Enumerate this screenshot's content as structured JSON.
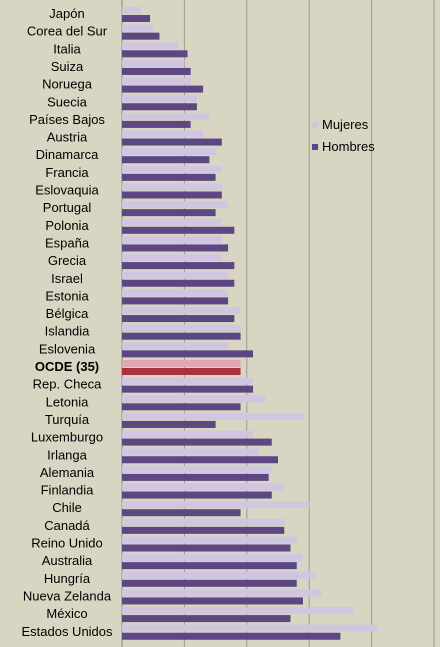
{
  "chart_data": {
    "type": "bar",
    "orientation": "horizontal",
    "categories": [
      "Japón",
      "Corea del Sur",
      "Italia",
      "Suiza",
      "Noruega",
      "Suecia",
      "Países Bajos",
      "Austria",
      "Dinamarca",
      "Francia",
      "Eslovaquia",
      "Portugal",
      "Polonia",
      "España",
      "Grecia",
      "Israel",
      "Estonia",
      "Bélgica",
      "Islandia",
      "Eslovenia",
      "OCDE (35)",
      "Rep. Checa",
      "Letonia",
      "Turquía",
      "Luxemburgo",
      "Irlanga",
      "Alemania",
      "Finlandia",
      "Chile",
      "Canadá",
      "Reino Unido",
      "Australia",
      "Hungría",
      "Nueva Zelanda",
      "México",
      "Estados Unidos"
    ],
    "highlight_category": "OCDE (35)",
    "series": [
      {
        "name": "Mujeres",
        "color": "#cfc6e2",
        "values": [
          3,
          5,
          9,
          10,
          11,
          12,
          14,
          13,
          15,
          16,
          16,
          17,
          16,
          16,
          16,
          17,
          17,
          19,
          19,
          17,
          19,
          21,
          23,
          29,
          21,
          22,
          24,
          26,
          30,
          26,
          28,
          29,
          31,
          32,
          37,
          41
        ]
      },
      {
        "name": "Hombres",
        "color": "#5c4683",
        "values": [
          4.5,
          6,
          10.5,
          11,
          13,
          12,
          11,
          16,
          14,
          15,
          16,
          15,
          18,
          17,
          18,
          18,
          17,
          18,
          19,
          21,
          19,
          21,
          19,
          15,
          24,
          25,
          23.5,
          24,
          19,
          26,
          27,
          28,
          28,
          29,
          27,
          35
        ]
      }
    ],
    "highlight_colors": [
      "#e0a8b3",
      "#a8323e"
    ],
    "xlim": [
      0,
      50
    ],
    "grid": true,
    "legend": "center-right"
  }
}
